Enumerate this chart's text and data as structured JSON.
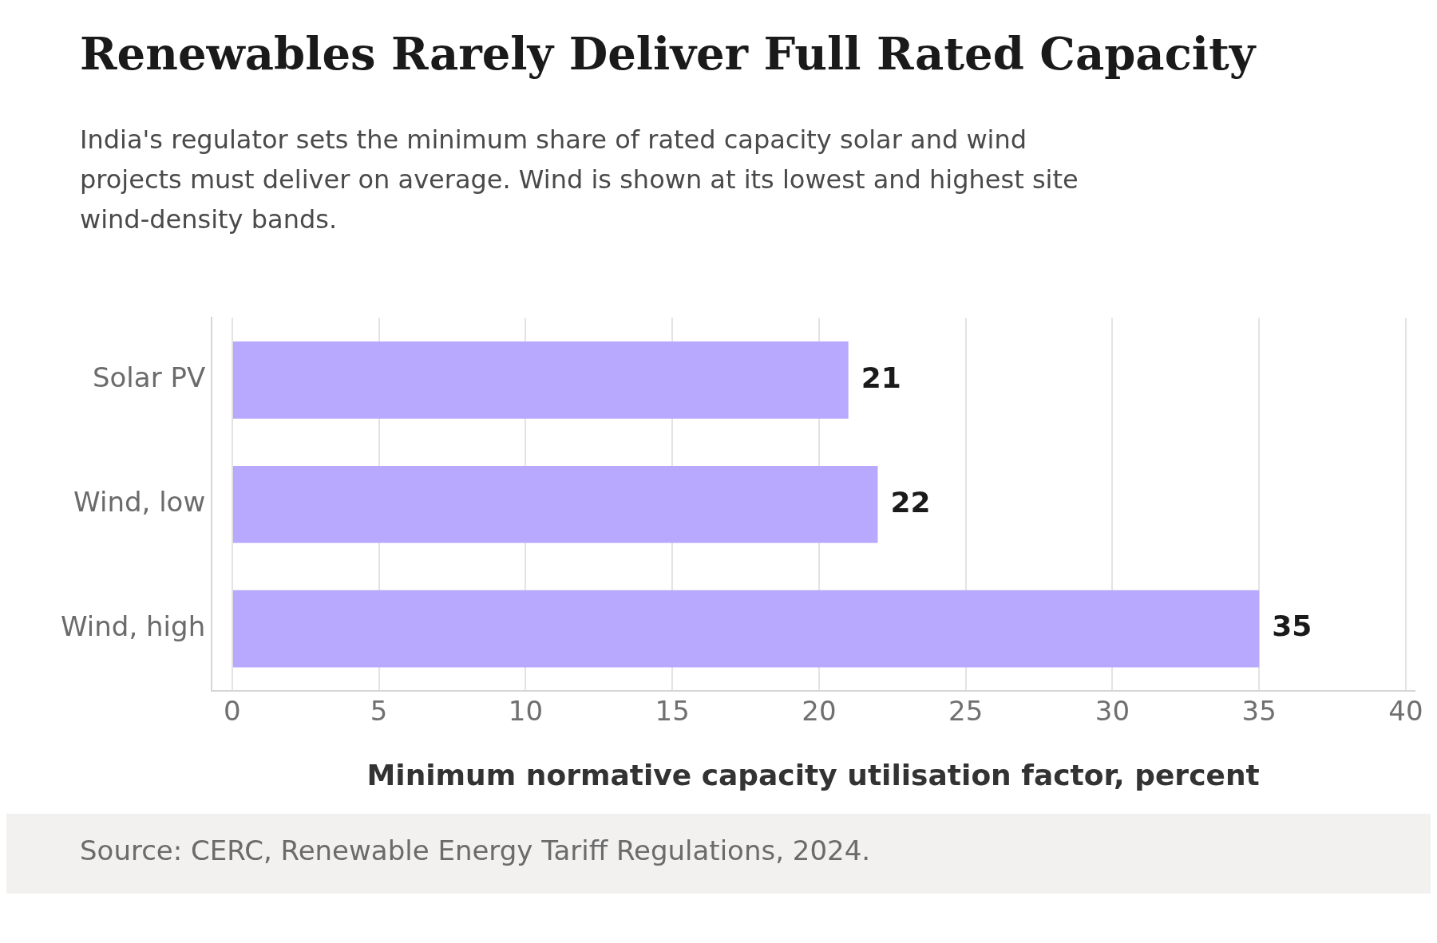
{
  "chart_data": {
    "type": "bar",
    "orientation": "horizontal",
    "title": "Renewables Rarely Deliver Full Rated Capacity",
    "subtitle": "India's regulator sets the minimum share of rated capacity solar and wind projects must deliver on average. Wind is shown at its lowest and highest site wind-density bands.",
    "categories": [
      "Solar PV",
      "Wind, low",
      "Wind, high"
    ],
    "values": [
      21,
      22,
      35
    ],
    "color": "#b8a8fe",
    "xlabel": "Minimum normative capacity utilisation factor, percent",
    "xlim": [
      -0.7,
      40.3
    ],
    "xticks": [
      0,
      5,
      10,
      15,
      20,
      25,
      30,
      35,
      40
    ],
    "grid": "x",
    "legend": false,
    "data_labels": true,
    "annotations": [
      "Source: CERC, Renewable Energy Tariff Regulations, 2024."
    ]
  }
}
